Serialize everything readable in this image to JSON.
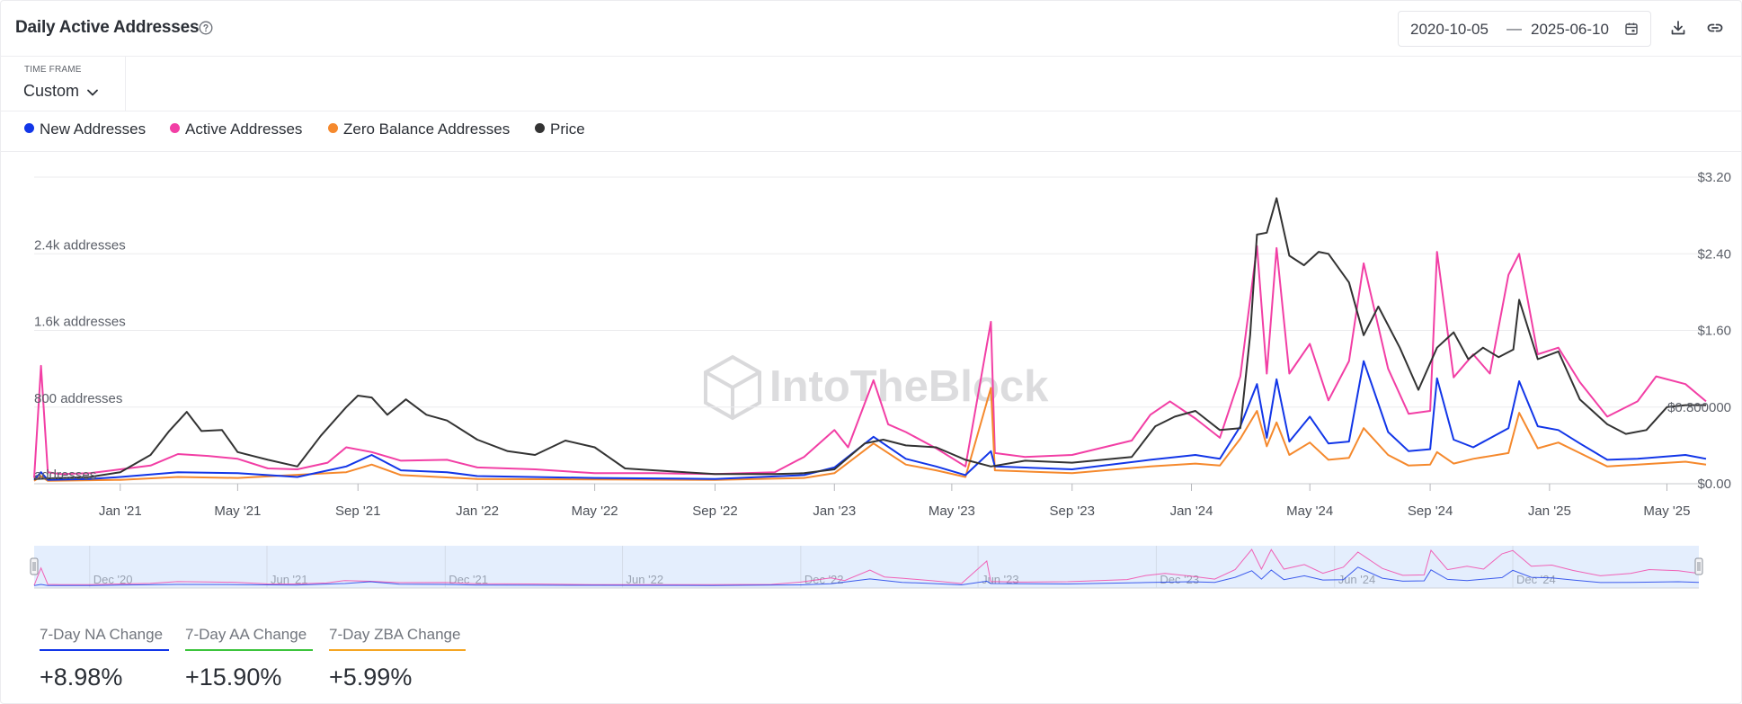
{
  "header": {
    "title": "Daily Active Addresses",
    "date_start": "2020-10-05",
    "date_separator": "—",
    "date_end": "2025-06-10"
  },
  "timeframe": {
    "label": "TIME FRAME",
    "value": "Custom"
  },
  "watermark": "IntoTheBlock",
  "legend": [
    {
      "name": "New Addresses",
      "color": "#1236e8"
    },
    {
      "name": "Active Addresses",
      "color": "#f23fa5"
    },
    {
      "name": "Zero Balance Addresses",
      "color": "#f5892d"
    },
    {
      "name": "Price",
      "color": "#333333"
    }
  ],
  "stats": [
    {
      "label": "7-Day NA Change",
      "value": "+8.98%",
      "color": "#1236e8"
    },
    {
      "label": "7-Day AA Change",
      "value": "+15.90%",
      "color": "#3cc43c"
    },
    {
      "label": "7-Day ZBA Change",
      "value": "+5.99%",
      "color": "#f5a623"
    }
  ],
  "chart_data": {
    "type": "line",
    "x_axis": {
      "type": "date",
      "range": [
        "2020-10-05",
        "2025-06-10"
      ],
      "tick_labels": [
        "Jan '21",
        "May '21",
        "Sep '21",
        "Jan '22",
        "May '22",
        "Sep '22",
        "Jan '23",
        "May '23",
        "Sep '23",
        "Jan '24",
        "May '24",
        "Sep '24",
        "Jan '25",
        "May '25"
      ],
      "tick_dates": [
        "2021-01-01",
        "2021-05-01",
        "2021-09-01",
        "2022-01-01",
        "2022-05-01",
        "2022-09-01",
        "2023-01-01",
        "2023-05-01",
        "2023-09-01",
        "2024-01-01",
        "2024-05-01",
        "2024-09-01",
        "2025-01-01",
        "2025-05-01"
      ]
    },
    "y_left": {
      "tick_labels": [
        "addresses",
        "800 addresses",
        "1.6k addresses",
        "2.4k addresses"
      ],
      "tick_values": [
        0,
        800,
        1600,
        2400
      ],
      "range": [
        0,
        3200
      ]
    },
    "y_right": {
      "tick_labels": [
        "$0.00",
        "$0.800000",
        "$1.60",
        "$2.40",
        "$3.20"
      ],
      "tick_values": [
        0,
        0.8,
        1.6,
        2.4,
        3.2
      ],
      "range": [
        0,
        3.2
      ]
    },
    "grid": true,
    "navigator": {
      "tick_labels": [
        "Dec '20",
        "Jun '21",
        "Dec '21",
        "Jun '22",
        "Dec '22",
        "Jun '23",
        "Dec '23",
        "Jun '24",
        "Dec '24"
      ],
      "tick_dates": [
        "2020-12-01",
        "2021-06-01",
        "2021-12-01",
        "2022-06-01",
        "2022-12-01",
        "2023-06-01",
        "2023-12-01",
        "2024-06-01",
        "2024-12-01"
      ]
    },
    "series": [
      {
        "name": "Active Addresses",
        "axis": "left",
        "color": "#f23fa5",
        "points": [
          [
            "2020-10-05",
            60
          ],
          [
            "2020-10-12",
            1230
          ],
          [
            "2020-10-19",
            120
          ],
          [
            "2020-11-01",
            100
          ],
          [
            "2020-12-01",
            110
          ],
          [
            "2021-01-01",
            150
          ],
          [
            "2021-02-01",
            190
          ],
          [
            "2021-03-01",
            310
          ],
          [
            "2021-04-01",
            290
          ],
          [
            "2021-05-01",
            260
          ],
          [
            "2021-06-01",
            160
          ],
          [
            "2021-07-01",
            150
          ],
          [
            "2021-08-01",
            220
          ],
          [
            "2021-08-20",
            380
          ],
          [
            "2021-09-15",
            330
          ],
          [
            "2021-10-15",
            240
          ],
          [
            "2021-12-01",
            250
          ],
          [
            "2022-01-01",
            170
          ],
          [
            "2022-03-01",
            150
          ],
          [
            "2022-05-01",
            110
          ],
          [
            "2022-07-01",
            110
          ],
          [
            "2022-09-01",
            100
          ],
          [
            "2022-11-01",
            120
          ],
          [
            "2022-12-01",
            280
          ],
          [
            "2023-01-01",
            560
          ],
          [
            "2023-01-15",
            380
          ],
          [
            "2023-02-10",
            1080
          ],
          [
            "2023-02-25",
            620
          ],
          [
            "2023-03-15",
            540
          ],
          [
            "2023-04-15",
            370
          ],
          [
            "2023-05-15",
            180
          ],
          [
            "2023-06-10",
            1690
          ],
          [
            "2023-06-14",
            320
          ],
          [
            "2023-07-15",
            280
          ],
          [
            "2023-09-01",
            300
          ],
          [
            "2023-11-01",
            450
          ],
          [
            "2023-11-20",
            720
          ],
          [
            "2023-12-10",
            860
          ],
          [
            "2024-01-05",
            680
          ],
          [
            "2024-01-30",
            480
          ],
          [
            "2024-02-20",
            1120
          ],
          [
            "2024-03-08",
            2480
          ],
          [
            "2024-03-18",
            1150
          ],
          [
            "2024-03-28",
            2460
          ],
          [
            "2024-04-10",
            1150
          ],
          [
            "2024-05-01",
            1460
          ],
          [
            "2024-05-20",
            870
          ],
          [
            "2024-06-10",
            1280
          ],
          [
            "2024-06-25",
            2300
          ],
          [
            "2024-07-20",
            1200
          ],
          [
            "2024-08-10",
            730
          ],
          [
            "2024-09-01",
            760
          ],
          [
            "2024-09-08",
            2420
          ],
          [
            "2024-09-25",
            1110
          ],
          [
            "2024-10-15",
            1350
          ],
          [
            "2024-11-01",
            1150
          ],
          [
            "2024-11-20",
            2180
          ],
          [
            "2024-12-01",
            2400
          ],
          [
            "2024-12-20",
            1350
          ],
          [
            "2025-01-10",
            1420
          ],
          [
            "2025-02-01",
            1060
          ],
          [
            "2025-03-01",
            700
          ],
          [
            "2025-04-01",
            860
          ],
          [
            "2025-04-20",
            1120
          ],
          [
            "2025-05-20",
            1040
          ],
          [
            "2025-06-10",
            860
          ]
        ]
      },
      {
        "name": "New Addresses",
        "axis": "left",
        "color": "#1236e8",
        "points": [
          [
            "2020-10-05",
            40
          ],
          [
            "2020-10-12",
            120
          ],
          [
            "2020-10-19",
            40
          ],
          [
            "2020-12-01",
            50
          ],
          [
            "2021-01-01",
            70
          ],
          [
            "2021-03-01",
            120
          ],
          [
            "2021-05-01",
            110
          ],
          [
            "2021-07-01",
            70
          ],
          [
            "2021-08-20",
            180
          ],
          [
            "2021-09-15",
            300
          ],
          [
            "2021-10-15",
            140
          ],
          [
            "2021-12-01",
            120
          ],
          [
            "2022-01-01",
            80
          ],
          [
            "2022-05-01",
            60
          ],
          [
            "2022-09-01",
            50
          ],
          [
            "2022-12-01",
            90
          ],
          [
            "2023-01-01",
            170
          ],
          [
            "2023-02-10",
            490
          ],
          [
            "2023-03-15",
            260
          ],
          [
            "2023-04-15",
            180
          ],
          [
            "2023-05-15",
            90
          ],
          [
            "2023-06-10",
            340
          ],
          [
            "2023-06-14",
            180
          ],
          [
            "2023-09-01",
            150
          ],
          [
            "2023-11-20",
            250
          ],
          [
            "2024-01-05",
            300
          ],
          [
            "2024-01-30",
            260
          ],
          [
            "2024-02-20",
            600
          ],
          [
            "2024-03-08",
            1040
          ],
          [
            "2024-03-18",
            480
          ],
          [
            "2024-03-28",
            1090
          ],
          [
            "2024-04-10",
            440
          ],
          [
            "2024-05-01",
            700
          ],
          [
            "2024-05-20",
            420
          ],
          [
            "2024-06-10",
            440
          ],
          [
            "2024-06-25",
            1280
          ],
          [
            "2024-07-20",
            540
          ],
          [
            "2024-08-10",
            340
          ],
          [
            "2024-09-01",
            360
          ],
          [
            "2024-09-08",
            1100
          ],
          [
            "2024-09-25",
            460
          ],
          [
            "2024-10-15",
            380
          ],
          [
            "2024-11-20",
            580
          ],
          [
            "2024-12-01",
            1070
          ],
          [
            "2024-12-20",
            600
          ],
          [
            "2025-01-10",
            560
          ],
          [
            "2025-02-01",
            420
          ],
          [
            "2025-03-01",
            250
          ],
          [
            "2025-04-01",
            260
          ],
          [
            "2025-05-20",
            300
          ],
          [
            "2025-06-10",
            260
          ]
        ]
      },
      {
        "name": "Zero Balance Addresses",
        "axis": "left",
        "color": "#f5892d",
        "points": [
          [
            "2020-10-05",
            30
          ],
          [
            "2020-10-12",
            80
          ],
          [
            "2020-10-19",
            30
          ],
          [
            "2021-01-01",
            40
          ],
          [
            "2021-03-01",
            70
          ],
          [
            "2021-05-01",
            60
          ],
          [
            "2021-08-20",
            120
          ],
          [
            "2021-09-15",
            200
          ],
          [
            "2021-10-15",
            90
          ],
          [
            "2022-01-01",
            50
          ],
          [
            "2022-09-01",
            40
          ],
          [
            "2022-12-01",
            60
          ],
          [
            "2023-01-01",
            110
          ],
          [
            "2023-02-10",
            420
          ],
          [
            "2023-03-15",
            200
          ],
          [
            "2023-04-15",
            140
          ],
          [
            "2023-05-15",
            70
          ],
          [
            "2023-06-10",
            1000
          ],
          [
            "2023-06-14",
            140
          ],
          [
            "2023-09-01",
            110
          ],
          [
            "2023-11-20",
            180
          ],
          [
            "2024-01-05",
            210
          ],
          [
            "2024-01-30",
            190
          ],
          [
            "2024-02-20",
            470
          ],
          [
            "2024-03-08",
            760
          ],
          [
            "2024-03-18",
            390
          ],
          [
            "2024-03-28",
            640
          ],
          [
            "2024-04-10",
            300
          ],
          [
            "2024-05-01",
            430
          ],
          [
            "2024-05-20",
            250
          ],
          [
            "2024-06-10",
            270
          ],
          [
            "2024-06-25",
            580
          ],
          [
            "2024-07-20",
            300
          ],
          [
            "2024-08-10",
            190
          ],
          [
            "2024-09-01",
            200
          ],
          [
            "2024-09-08",
            330
          ],
          [
            "2024-09-25",
            210
          ],
          [
            "2024-10-15",
            260
          ],
          [
            "2024-11-20",
            320
          ],
          [
            "2024-12-01",
            740
          ],
          [
            "2024-12-20",
            370
          ],
          [
            "2025-01-10",
            430
          ],
          [
            "2025-02-01",
            320
          ],
          [
            "2025-03-01",
            180
          ],
          [
            "2025-04-01",
            200
          ],
          [
            "2025-05-20",
            230
          ],
          [
            "2025-06-10",
            200
          ]
        ]
      },
      {
        "name": "Price",
        "axis": "right",
        "color": "#333333",
        "points": [
          [
            "2020-10-05",
            0.05
          ],
          [
            "2020-11-01",
            0.06
          ],
          [
            "2020-12-01",
            0.07
          ],
          [
            "2021-01-01",
            0.12
          ],
          [
            "2021-02-01",
            0.3
          ],
          [
            "2021-02-20",
            0.55
          ],
          [
            "2021-03-10",
            0.75
          ],
          [
            "2021-03-25",
            0.55
          ],
          [
            "2021-04-15",
            0.56
          ],
          [
            "2021-05-01",
            0.33
          ],
          [
            "2021-06-01",
            0.25
          ],
          [
            "2021-07-01",
            0.18
          ],
          [
            "2021-07-25",
            0.5
          ],
          [
            "2021-08-20",
            0.8
          ],
          [
            "2021-09-01",
            0.92
          ],
          [
            "2021-09-15",
            0.9
          ],
          [
            "2021-10-01",
            0.72
          ],
          [
            "2021-10-20",
            0.88
          ],
          [
            "2021-11-10",
            0.72
          ],
          [
            "2021-12-01",
            0.66
          ],
          [
            "2022-01-01",
            0.46
          ],
          [
            "2022-02-01",
            0.34
          ],
          [
            "2022-03-01",
            0.3
          ],
          [
            "2022-04-01",
            0.45
          ],
          [
            "2022-05-01",
            0.38
          ],
          [
            "2022-06-01",
            0.16
          ],
          [
            "2022-07-01",
            0.14
          ],
          [
            "2022-09-01",
            0.1
          ],
          [
            "2022-11-01",
            0.1
          ],
          [
            "2022-12-01",
            0.11
          ],
          [
            "2023-01-01",
            0.15
          ],
          [
            "2023-02-01",
            0.42
          ],
          [
            "2023-02-20",
            0.46
          ],
          [
            "2023-03-15",
            0.4
          ],
          [
            "2023-04-15",
            0.38
          ],
          [
            "2023-05-15",
            0.25
          ],
          [
            "2023-06-10",
            0.18
          ],
          [
            "2023-07-15",
            0.24
          ],
          [
            "2023-09-01",
            0.22
          ],
          [
            "2023-11-01",
            0.28
          ],
          [
            "2023-11-25",
            0.6
          ],
          [
            "2023-12-15",
            0.7
          ],
          [
            "2024-01-05",
            0.76
          ],
          [
            "2024-01-30",
            0.56
          ],
          [
            "2024-02-20",
            0.58
          ],
          [
            "2024-03-01",
            1.55
          ],
          [
            "2024-03-08",
            2.6
          ],
          [
            "2024-03-18",
            2.62
          ],
          [
            "2024-03-28",
            2.98
          ],
          [
            "2024-04-10",
            2.38
          ],
          [
            "2024-04-25",
            2.28
          ],
          [
            "2024-05-10",
            2.42
          ],
          [
            "2024-05-20",
            2.4
          ],
          [
            "2024-06-10",
            2.1
          ],
          [
            "2024-06-25",
            1.55
          ],
          [
            "2024-07-10",
            1.85
          ],
          [
            "2024-08-01",
            1.42
          ],
          [
            "2024-08-20",
            0.98
          ],
          [
            "2024-09-08",
            1.42
          ],
          [
            "2024-09-25",
            1.58
          ],
          [
            "2024-10-10",
            1.3
          ],
          [
            "2024-10-25",
            1.42
          ],
          [
            "2024-11-10",
            1.32
          ],
          [
            "2024-11-25",
            1.4
          ],
          [
            "2024-12-01",
            1.92
          ],
          [
            "2024-12-20",
            1.3
          ],
          [
            "2025-01-10",
            1.38
          ],
          [
            "2025-02-01",
            0.88
          ],
          [
            "2025-03-01",
            0.62
          ],
          [
            "2025-03-20",
            0.52
          ],
          [
            "2025-04-10",
            0.56
          ],
          [
            "2025-05-01",
            0.8
          ],
          [
            "2025-05-20",
            0.82
          ],
          [
            "2025-06-10",
            0.82
          ]
        ]
      }
    ]
  }
}
